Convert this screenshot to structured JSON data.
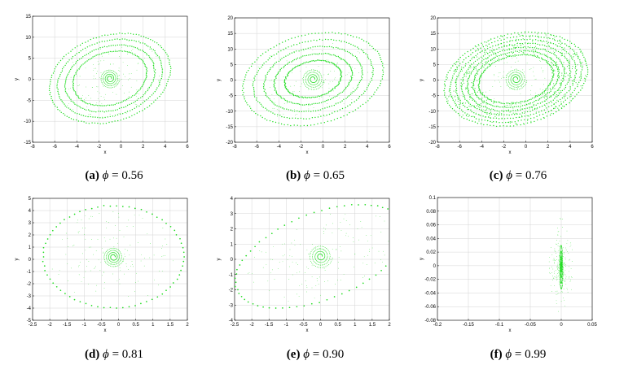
{
  "point_color": "#22dd22",
  "chart_data": [
    {
      "type": "scatter",
      "label": "(a)",
      "phi": "0.56",
      "xlabel": "x",
      "ylabel": "y",
      "grid": true,
      "xlim": [
        -8,
        6
      ],
      "ylim": [
        -15,
        15
      ],
      "xticks": [
        "-8",
        "-6",
        "-4",
        "-2",
        "0",
        "2",
        "4",
        "6"
      ],
      "yticks": [
        "-15",
        "-10",
        "-5",
        "0",
        "5",
        "10",
        "15"
      ],
      "pattern": {
        "kind": "closed_orbit",
        "center": [
          -1.0,
          0.2
        ],
        "rx": 5.3,
        "ry": 10.8,
        "tilt_deg": -8,
        "bands": 4,
        "band_spacing": 0.13,
        "spiral_r0": 0.15,
        "spiral_r1": 0.9,
        "spiral_turns": 4
      }
    },
    {
      "type": "scatter",
      "label": "(b)",
      "phi": "0.65",
      "xlabel": "x",
      "ylabel": "y",
      "grid": true,
      "xlim": [
        -8,
        6
      ],
      "ylim": [
        -20,
        20
      ],
      "xticks": [
        "-8",
        "-6",
        "-4",
        "-2",
        "0",
        "2",
        "4",
        "6"
      ],
      "yticks": [
        "-20",
        "-15",
        "-10",
        "-5",
        "0",
        "5",
        "10",
        "15",
        "20"
      ],
      "pattern": {
        "kind": "closed_orbit",
        "center": [
          -0.9,
          0.3
        ],
        "rx": 6.2,
        "ry": 15.0,
        "tilt_deg": -6,
        "bands": 5,
        "band_spacing": 0.15,
        "spiral_r0": 0.15,
        "spiral_r1": 1.0,
        "spiral_turns": 4
      }
    },
    {
      "type": "scatter",
      "label": "(c)",
      "phi": "0.76",
      "xlabel": "x",
      "ylabel": "y",
      "grid": true,
      "xlim": [
        -8,
        6
      ],
      "ylim": [
        -20,
        20
      ],
      "xticks": [
        "-8",
        "-6",
        "-4",
        "-2",
        "0",
        "2",
        "4",
        "6"
      ],
      "yticks": [
        "-20",
        "-15",
        "-10",
        "-5",
        "0",
        "5",
        "10",
        "15",
        "20"
      ],
      "pattern": {
        "kind": "thick_orbit",
        "center": [
          -0.9,
          0.3
        ],
        "rx": 6.3,
        "ry": 15.2,
        "tilt_deg": -6,
        "bands": 7,
        "band_spacing": 0.08,
        "spiral_r0": 0.15,
        "spiral_r1": 1.0,
        "spiral_turns": 4
      }
    },
    {
      "type": "scatter",
      "label": "(d)",
      "phi": "0.81",
      "xlabel": "x",
      "ylabel": "y",
      "grid": true,
      "xlim": [
        -2.5,
        2
      ],
      "ylim": [
        -5,
        5
      ],
      "xticks": [
        "-2.5",
        "-2",
        "-1.5",
        "-1",
        "-0.5",
        "0",
        "0.5",
        "1",
        "1.5",
        "2"
      ],
      "yticks": [
        "-5",
        "-4",
        "-3",
        "-2",
        "-1",
        "0",
        "1",
        "2",
        "3",
        "4",
        "5"
      ],
      "pattern": {
        "kind": "ellipse",
        "center": [
          -0.15,
          0.2
        ],
        "rx": 2.05,
        "ry": 4.2,
        "tilt_deg": 0,
        "bands": 1,
        "band_spacing": 0,
        "spiral_r0": 0.05,
        "spiral_r1": 0.3,
        "spiral_turns": 4
      }
    },
    {
      "type": "scatter",
      "label": "(e)",
      "phi": "0.90",
      "xlabel": "x",
      "ylabel": "y",
      "grid": true,
      "xlim": [
        -2.5,
        2
      ],
      "ylim": [
        -4,
        4
      ],
      "xticks": [
        "-2.5",
        "-2",
        "-1.5",
        "-1",
        "-0.5",
        "0",
        "0.5",
        "1",
        "1.5",
        "2"
      ],
      "yticks": [
        "-4",
        "-3",
        "-2",
        "-1",
        "0",
        "1",
        "2",
        "3",
        "4"
      ],
      "pattern": {
        "kind": "ellipse",
        "center": [
          0.0,
          0.2
        ],
        "rx": 2.0,
        "ry": 3.7,
        "tilt_deg": -28,
        "bands": 1,
        "band_spacing": 0,
        "spiral_r0": 0.05,
        "spiral_r1": 0.35,
        "spiral_turns": 4
      }
    },
    {
      "type": "scatter",
      "label": "(f)",
      "phi": "0.99",
      "xlabel": "x",
      "ylabel": "y",
      "grid": true,
      "xlim": [
        -0.2,
        0.05
      ],
      "ylim": [
        -0.08,
        0.1
      ],
      "xticks": [
        "-0.2",
        "-0.15",
        "-0.1",
        "-0.05",
        "0",
        "0.05"
      ],
      "yticks": [
        "-0.08",
        "-0.06",
        "-0.04",
        "-0.02",
        "0",
        "0.02",
        "0.04",
        "0.06",
        "0.08",
        "0.1"
      ],
      "pattern": {
        "kind": "focus",
        "center": [
          0.0,
          0.0
        ],
        "rx": 0.02,
        "ry": 0.07,
        "tilt_deg": 0,
        "bands": 1,
        "band_spacing": 0,
        "spiral_r0": 0.001,
        "spiral_r1": 0.012,
        "spiral_turns": 4
      }
    }
  ]
}
